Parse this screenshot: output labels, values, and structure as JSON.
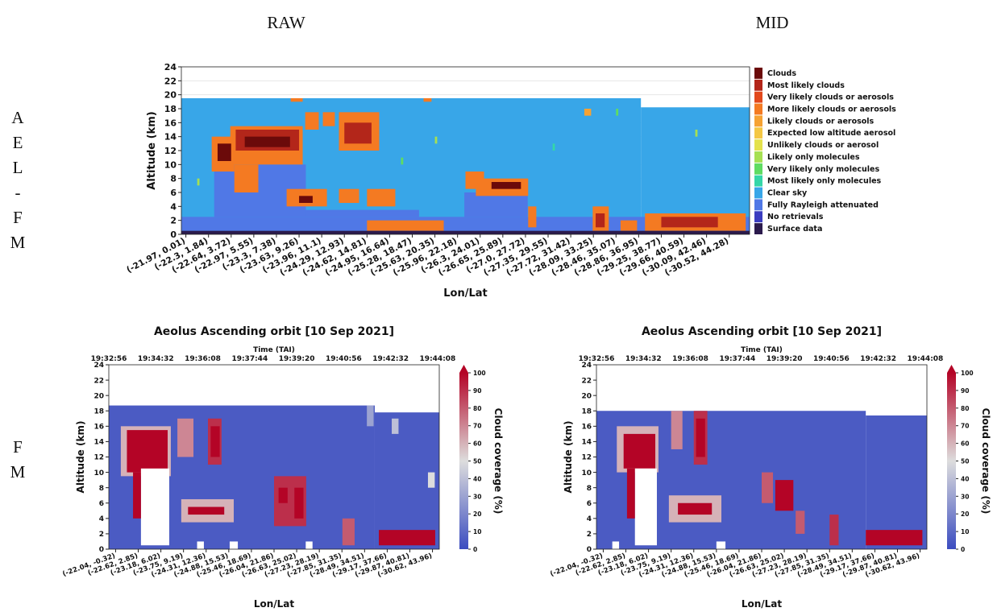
{
  "column_headers": [
    "RAW",
    "MID"
  ],
  "row_labels": [
    "AEL-FM",
    "FM"
  ],
  "chart_data": [
    {
      "type": "heatmap",
      "ylabel": "Altitude (km)",
      "xlabel": "Lon/Lat",
      "categories": [
        "(-21.97, 0.01)",
        "(-22.3, 1.84)",
        "(-22.64, 3.72)",
        "(-22.97, 5.55)",
        "(-23.3, 7.38)",
        "(-23.63, 9.26)",
        "(-23.96, 11.1)",
        "(-24.29, 12.93)",
        "(-24.62, 14.81)",
        "(-24.95, 16.64)",
        "(-25.28, 18.47)",
        "(-25.63, 20.35)",
        "(-25.96, 22.18)",
        "(-26.3, 24.01)",
        "(-26.65, 25.89)",
        "(-27.0, 27.72)",
        "(-27.35, 29.55)",
        "(-27.72, 31.42)",
        "(-28.09, 33.25)",
        "(-28.46, 35.07)",
        "(-28.86, 36.95)",
        "(-29.25, 38.77)",
        "(-29.66, 40.59)",
        "(-30.09, 42.46)",
        "(-30.52, 44.28)"
      ],
      "xlim": [
        -0.2,
        24.9
      ],
      "ylim": [
        0,
        24
      ],
      "yticks": [
        0,
        2,
        4,
        6,
        8,
        10,
        12,
        14,
        16,
        18,
        20,
        22,
        24
      ],
      "grid": true,
      "classes": [
        {
          "name": "Clouds",
          "color": "#6b0a0a"
        },
        {
          "name": "Most likely clouds",
          "color": "#b3261a"
        },
        {
          "name": "Very likely clouds or aerosols",
          "color": "#e2481c"
        },
        {
          "name": "More likely clouds or aerosols",
          "color": "#f47a22"
        },
        {
          "name": "Likely clouds or aerosols",
          "color": "#f6a233"
        },
        {
          "name": "Expected low altitude aerosol",
          "color": "#f4c744"
        },
        {
          "name": "Unlikely clouds or aerosol",
          "color": "#e4e24c"
        },
        {
          "name": "Likely only molecules",
          "color": "#a6e052"
        },
        {
          "name": "Very likely only molecules",
          "color": "#5fdc62"
        },
        {
          "name": "Most likely only molecules",
          "color": "#35d6a8"
        },
        {
          "name": "Clear sky",
          "color": "#38a6e8"
        },
        {
          "name": "Fully Rayleigh attenuated",
          "color": "#5078e6"
        },
        {
          "name": "No retrievals",
          "color": "#3a3cc0"
        },
        {
          "name": "Surface data",
          "color": "#2b1a4c"
        }
      ],
      "cells": [
        {
          "class": 10,
          "x": [
            -0.2,
            20.1
          ],
          "y": [
            0,
            19.5
          ]
        },
        {
          "class": 10,
          "x": [
            20.1,
            24.9
          ],
          "y": [
            0,
            18.2
          ]
        },
        {
          "class": 11,
          "x": [
            -0.2,
            24.9
          ],
          "y": [
            0.5,
            2.5
          ]
        },
        {
          "class": 11,
          "x": [
            1.25,
            5.3
          ],
          "y": [
            2.5,
            10
          ]
        },
        {
          "class": 11,
          "x": [
            5.3,
            10.3
          ],
          "y": [
            2.5,
            3.5
          ]
        },
        {
          "class": 11,
          "x": [
            12.3,
            15.1
          ],
          "y": [
            2.5,
            6
          ]
        },
        {
          "class": 3,
          "x": [
            1.14,
            2.14
          ],
          "y": [
            9,
            14
          ]
        },
        {
          "class": 3,
          "x": [
            1.96,
            5.16
          ],
          "y": [
            10,
            15.5
          ]
        },
        {
          "class": 3,
          "x": [
            2.14,
            3.2
          ],
          "y": [
            6,
            10
          ]
        },
        {
          "class": 0,
          "x": [
            1.4,
            2.0
          ],
          "y": [
            10.5,
            13
          ]
        },
        {
          "class": 1,
          "x": [
            2.2,
            5.0
          ],
          "y": [
            12,
            15
          ]
        },
        {
          "class": 0,
          "x": [
            2.6,
            4.6
          ],
          "y": [
            12.5,
            14
          ]
        },
        {
          "class": 3,
          "x": [
            5.27,
            5.87
          ],
          "y": [
            15,
            17.5
          ]
        },
        {
          "class": 3,
          "x": [
            6.05,
            6.58
          ],
          "y": [
            15.5,
            17.5
          ]
        },
        {
          "class": 3,
          "x": [
            6.76,
            8.54
          ],
          "y": [
            12,
            17.5
          ]
        },
        {
          "class": 1,
          "x": [
            7.0,
            8.2
          ],
          "y": [
            13,
            16
          ]
        },
        {
          "class": 3,
          "x": [
            4.45,
            6.23
          ],
          "y": [
            4,
            6.5
          ]
        },
        {
          "class": 0,
          "x": [
            5.0,
            5.6
          ],
          "y": [
            4.5,
            5.5
          ]
        },
        {
          "class": 3,
          "x": [
            6.76,
            7.65
          ],
          "y": [
            4.5,
            6.5
          ]
        },
        {
          "class": 3,
          "x": [
            8.0,
            9.25
          ],
          "y": [
            4,
            6.5
          ]
        },
        {
          "class": 3,
          "x": [
            12.35,
            13.17
          ],
          "y": [
            6.5,
            9
          ]
        },
        {
          "class": 3,
          "x": [
            12.81,
            15.12
          ],
          "y": [
            5.5,
            8
          ]
        },
        {
          "class": 0,
          "x": [
            13.5,
            14.8
          ],
          "y": [
            6.5,
            7.5
          ]
        },
        {
          "class": 3,
          "x": [
            15.12,
            15.48
          ],
          "y": [
            1,
            4
          ]
        },
        {
          "class": 3,
          "x": [
            17.97,
            18.68
          ],
          "y": [
            0.5,
            4
          ]
        },
        {
          "class": 1,
          "x": [
            18.1,
            18.5
          ],
          "y": [
            1,
            3
          ]
        },
        {
          "class": 3,
          "x": [
            19.2,
            19.93
          ],
          "y": [
            0.5,
            2
          ]
        },
        {
          "class": 3,
          "x": [
            20.28,
            24.73
          ],
          "y": [
            0.5,
            3
          ]
        },
        {
          "class": 1,
          "x": [
            21.0,
            23.5
          ],
          "y": [
            1,
            2.5
          ]
        },
        {
          "class": 3,
          "x": [
            8.0,
            11.39
          ],
          "y": [
            0.5,
            2
          ]
        },
        {
          "class": 3,
          "x": [
            4.63,
            5.16
          ],
          "y": [
            19,
            19.5
          ]
        },
        {
          "class": 3,
          "x": [
            10.5,
            10.85
          ],
          "y": [
            19,
            19.5
          ]
        },
        {
          "class": 4,
          "x": [
            17.6,
            17.9
          ],
          "y": [
            17,
            18
          ]
        },
        {
          "class": 7,
          "x": [
            0.5,
            0.6
          ],
          "y": [
            7,
            8
          ]
        },
        {
          "class": 8,
          "x": [
            9.5,
            9.6
          ],
          "y": [
            10,
            11
          ]
        },
        {
          "class": 7,
          "x": [
            11.0,
            11.1
          ],
          "y": [
            13,
            14
          ]
        },
        {
          "class": 9,
          "x": [
            16.2,
            16.3
          ],
          "y": [
            12,
            13
          ]
        },
        {
          "class": 7,
          "x": [
            22.5,
            22.6
          ],
          "y": [
            14,
            15
          ]
        },
        {
          "class": 8,
          "x": [
            19.0,
            19.1
          ],
          "y": [
            17,
            18
          ]
        },
        {
          "class": 13,
          "x": [
            -0.2,
            24.9
          ],
          "y": [
            0,
            0.5
          ]
        }
      ]
    },
    {
      "type": "heatmap",
      "title": "Aeolus Ascending orbit [10 Sep 2021]",
      "x2label": "Time (TAI)",
      "x2ticks": [
        "19:32:56",
        "19:34:32",
        "19:36:08",
        "19:37:44",
        "19:39:20",
        "19:40:56",
        "19:42:32",
        "19:44:08"
      ],
      "ylabel": "Altitude (km)",
      "xlabel": "Lon/Lat",
      "categories": [
        "(-22.04, -0.32)",
        "(-22.62, 2.85)",
        "(-23.18, 6.02)",
        "(-23.75, 9.19)",
        "(-24.31, 12.36)",
        "(-24.88, 15.53)",
        "(-25.46, 18.69)",
        "(-26.04, 21.86)",
        "(-26.63, 25.02)",
        "(-27.23, 28.19)",
        "(-27.85, 31.35)",
        "(-28.49, 34.51)",
        "(-29.17, 37.66)",
        "(-29.87, 40.81)",
        "(-30.62, 43.96)"
      ],
      "xlim": [
        -0.3,
        14.3
      ],
      "ylim": [
        0,
        24
      ],
      "yticks": [
        0,
        2,
        4,
        6,
        8,
        10,
        12,
        14,
        16,
        18,
        20,
        22,
        24
      ],
      "colorbar": {
        "label": "Cloud coverage (%)",
        "lim": [
          0,
          100
        ],
        "ticks": [
          0,
          10,
          20,
          30,
          40,
          50,
          60,
          70,
          80,
          90,
          100
        ]
      },
      "cells": [
        {
          "value": 5,
          "x": [
            -0.3,
            11.45
          ],
          "y": [
            0,
            18.7
          ]
        },
        {
          "value": 5,
          "x": [
            11.45,
            14.3
          ],
          "y": [
            0,
            17.8
          ]
        },
        {
          "value": 60,
          "x": [
            0.23,
            2.44
          ],
          "y": [
            9.5,
            16
          ]
        },
        {
          "value": 100,
          "x": [
            0.5,
            2.3
          ],
          "y": [
            10,
            15.5
          ]
        },
        {
          "value": null,
          "x": [
            1.12,
            2.37
          ],
          "y": [
            0.5,
            10.5
          ]
        },
        {
          "value": 100,
          "x": [
            0.77,
            1.12
          ],
          "y": [
            4,
            10
          ]
        },
        {
          "value": 70,
          "x": [
            2.73,
            3.44
          ],
          "y": [
            12,
            17
          ]
        },
        {
          "value": 90,
          "x": [
            4.08,
            4.68
          ],
          "y": [
            11,
            17
          ]
        },
        {
          "value": 100,
          "x": [
            4.2,
            4.6
          ],
          "y": [
            12,
            16
          ]
        },
        {
          "value": 60,
          "x": [
            2.9,
            5.22
          ],
          "y": [
            3.5,
            6.5
          ]
        },
        {
          "value": 100,
          "x": [
            3.2,
            4.8
          ],
          "y": [
            4.5,
            5.5
          ]
        },
        {
          "value": 90,
          "x": [
            7.0,
            8.42
          ],
          "y": [
            3,
            9.5
          ]
        },
        {
          "value": 100,
          "x": [
            7.2,
            7.6
          ],
          "y": [
            6,
            8
          ]
        },
        {
          "value": 100,
          "x": [
            7.9,
            8.3
          ],
          "y": [
            4,
            8
          ]
        },
        {
          "value": 80,
          "x": [
            10.02,
            10.56
          ],
          "y": [
            0.5,
            4
          ]
        },
        {
          "value": 100,
          "x": [
            11.63,
            14.12
          ],
          "y": [
            0.5,
            2.5
          ]
        },
        {
          "value": null,
          "x": [
            5.04,
            5.4
          ],
          "y": [
            0,
            1
          ]
        },
        {
          "value": null,
          "x": [
            3.6,
            3.9
          ],
          "y": [
            0,
            1
          ]
        },
        {
          "value": null,
          "x": [
            8.4,
            8.7
          ],
          "y": [
            0,
            1
          ]
        },
        {
          "value": 30,
          "x": [
            11.1,
            11.4
          ],
          "y": [
            16,
            18.7
          ]
        },
        {
          "value": 40,
          "x": [
            12.2,
            12.5
          ],
          "y": [
            15,
            17
          ]
        },
        {
          "value": 50,
          "x": [
            13.8,
            14.1
          ],
          "y": [
            8,
            10
          ]
        }
      ]
    },
    {
      "type": "heatmap",
      "title": "Aeolus Ascending orbit [10 Sep 2021]",
      "x2label": "Time (TAI)",
      "x2ticks": [
        "19:32:56",
        "19:34:32",
        "19:36:08",
        "19:37:44",
        "19:39:20",
        "19:40:56",
        "19:42:32",
        "19:44:08"
      ],
      "ylabel": "Altitude (km)",
      "xlabel": "Lon/Lat",
      "categories": [
        "(-22.04, -0.32)",
        "(-22.62, 2.85)",
        "(-23.18, 6.02)",
        "(-23.75, 9.19)",
        "(-24.31, 12.36)",
        "(-24.88, 15.53)",
        "(-25.46, 18.69)",
        "(-26.04, 21.86)",
        "(-26.63, 25.02)",
        "(-27.23, 28.19)",
        "(-27.85, 31.35)",
        "(-28.49, 34.51)",
        "(-29.17, 37.66)",
        "(-29.87, 40.81)",
        "(-30.62, 43.96)"
      ],
      "xlim": [
        -0.3,
        14.3
      ],
      "ylim": [
        0,
        24
      ],
      "yticks": [
        0,
        2,
        4,
        6,
        8,
        10,
        12,
        14,
        16,
        18,
        20,
        22,
        24
      ],
      "colorbar": {
        "label": "Cloud coverage (%)",
        "lim": [
          0,
          100
        ],
        "ticks": [
          0,
          10,
          20,
          30,
          40,
          50,
          60,
          70,
          80,
          90,
          100
        ]
      },
      "cells": [
        {
          "value": 5,
          "x": [
            -0.3,
            11.6
          ],
          "y": [
            0,
            18
          ]
        },
        {
          "value": 5,
          "x": [
            11.6,
            14.3
          ],
          "y": [
            0,
            17.4
          ]
        },
        {
          "value": 60,
          "x": [
            0.6,
            2.44
          ],
          "y": [
            10,
            16
          ]
        },
        {
          "value": 100,
          "x": [
            0.9,
            2.3
          ],
          "y": [
            10.5,
            15
          ]
        },
        {
          "value": null,
          "x": [
            1.4,
            2.37
          ],
          "y": [
            0.5,
            10.5
          ]
        },
        {
          "value": 100,
          "x": [
            1.05,
            1.4
          ],
          "y": [
            4,
            10.5
          ]
        },
        {
          "value": 70,
          "x": [
            3.0,
            3.5
          ],
          "y": [
            13,
            18
          ]
        },
        {
          "value": 90,
          "x": [
            4.0,
            4.6
          ],
          "y": [
            11,
            18
          ]
        },
        {
          "value": 100,
          "x": [
            4.1,
            4.5
          ],
          "y": [
            12,
            17
          ]
        },
        {
          "value": 60,
          "x": [
            2.9,
            5.22
          ],
          "y": [
            3.5,
            7
          ]
        },
        {
          "value": 100,
          "x": [
            3.3,
            4.8
          ],
          "y": [
            4.5,
            6
          ]
        },
        {
          "value": 80,
          "x": [
            7.0,
            7.5
          ],
          "y": [
            6,
            10
          ]
        },
        {
          "value": 100,
          "x": [
            7.6,
            8.4
          ],
          "y": [
            5,
            9
          ]
        },
        {
          "value": 80,
          "x": [
            8.5,
            8.9
          ],
          "y": [
            2,
            5
          ]
        },
        {
          "value": 90,
          "x": [
            10.0,
            10.4
          ],
          "y": [
            0.5,
            4.5
          ]
        },
        {
          "value": 100,
          "x": [
            11.6,
            14.1
          ],
          "y": [
            0.5,
            2.5
          ]
        },
        {
          "value": null,
          "x": [
            0.4,
            0.7
          ],
          "y": [
            0,
            1
          ]
        },
        {
          "value": null,
          "x": [
            5.0,
            5.4
          ],
          "y": [
            0,
            1
          ]
        }
      ]
    }
  ]
}
